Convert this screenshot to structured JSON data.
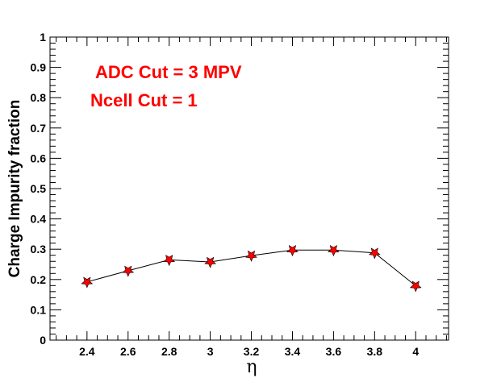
{
  "chart_data": {
    "type": "line",
    "title": "",
    "xlabel": "η",
    "ylabel": "Charge Impurity fraction",
    "xlim": [
      2.22,
      4.16
    ],
    "ylim": [
      0,
      1
    ],
    "x_ticks": [
      "2.4",
      "2.6",
      "2.8",
      "3",
      "3.2",
      "3.4",
      "3.6",
      "3.8",
      "4"
    ],
    "y_ticks": [
      "0",
      "0.1",
      "0.2",
      "0.3",
      "0.4",
      "0.5",
      "0.6",
      "0.7",
      "0.8",
      "0.9",
      "1"
    ],
    "grid": false,
    "legend": "none",
    "series": [
      {
        "x": [
          2.4,
          2.6,
          2.8,
          3.0,
          3.2,
          3.4,
          3.6,
          3.8,
          4.0
        ],
        "y": [
          0.192,
          0.229,
          0.265,
          0.258,
          0.279,
          0.297,
          0.297,
          0.288,
          0.179
        ],
        "color": "#ff0000",
        "line_color": "#000000",
        "marker": "star"
      }
    ],
    "annotations": [
      {
        "text": "ADC Cut = 3 MPV",
        "color": "#ff0000"
      },
      {
        "text": "Ncell Cut = 1",
        "color": "#ff0000"
      }
    ]
  }
}
